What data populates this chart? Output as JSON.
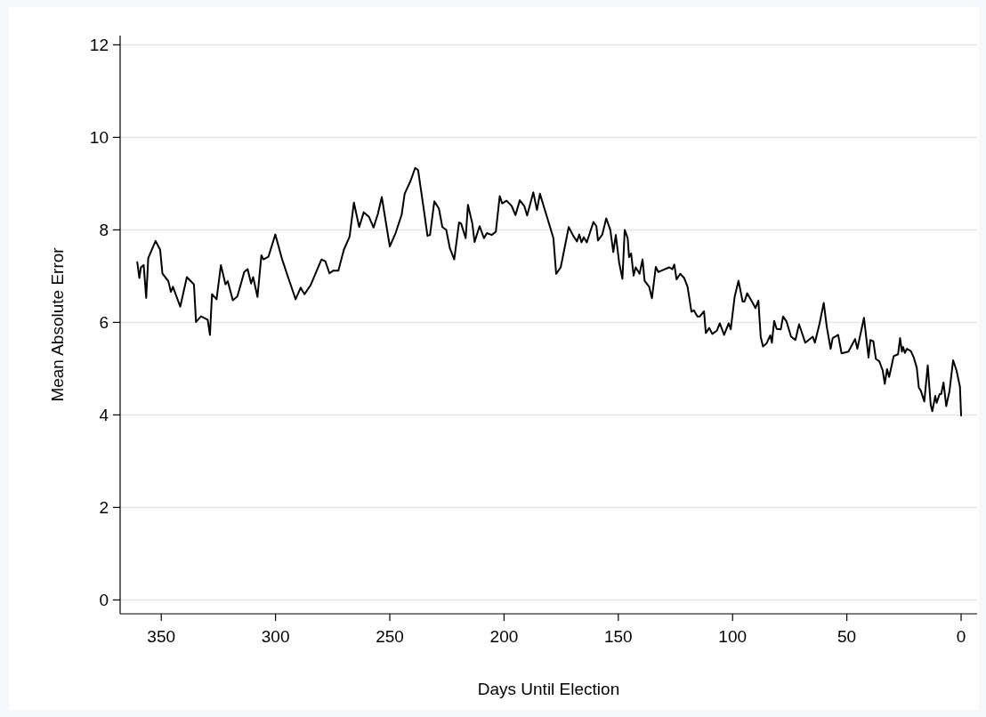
{
  "chart_data": {
    "type": "line",
    "xlabel": "Days Until Election",
    "ylabel": "Mean Absolute Error",
    "xlim": [
      368,
      -7
    ],
    "xticks": [
      350,
      300,
      250,
      200,
      150,
      100,
      50,
      0
    ],
    "ylim": [
      -0.3,
      12.2
    ],
    "yticks": [
      0,
      2,
      4,
      6,
      8,
      10,
      12
    ],
    "grid": "y",
    "marker": "none",
    "line_style": "solid",
    "series": [
      {
        "color": "#000000",
        "x": [
          360.5,
          359.6,
          358.9,
          357.7,
          356.6,
          355.7,
          352.5,
          350.5,
          349.5,
          346.9,
          345.8,
          344.9,
          341.7,
          338.8,
          335.7,
          334.8,
          332.6,
          329.7,
          328.7,
          327.8,
          325.8,
          323.9,
          321.9,
          320.9,
          318.7,
          316.7,
          313.7,
          312.2,
          310.7,
          309.8,
          307.9,
          306.2,
          305.3,
          303.1,
          300.1,
          297.1,
          294.2,
          291.2,
          289.0,
          287.3,
          284.7,
          279.9,
          278.2,
          276.4,
          274.7,
          272.5,
          270.1,
          267.6,
          265.7,
          263.4,
          261.4,
          259.1,
          257.1,
          255.2,
          253.5,
          250.0,
          247.4,
          244.8,
          243.5,
          240.9,
          238.9,
          237.6,
          235.0,
          233.5,
          232.4,
          230.5,
          228.5,
          227.0,
          225.3,
          223.7,
          221.8,
          219.7,
          218.8,
          216.8,
          215.8,
          213.9,
          212.9,
          210.7,
          208.8,
          207.5,
          205.4,
          203.6,
          201.9,
          200.8,
          198.9,
          196.7,
          195.0,
          193.1,
          191.1,
          189.9,
          187.2,
          185.6,
          184.3,
          181.7,
          178.4,
          177.2,
          175.2,
          171.7,
          169.7,
          168.1,
          167.1,
          166.1,
          165.1,
          163.8,
          160.9,
          159.6,
          158.9,
          157.0,
          155.3,
          153.5,
          152.2,
          151.1,
          149.6,
          148.2,
          147.2,
          145.9,
          145.3,
          144.4,
          143.3,
          142.4,
          140.7,
          139.4,
          138.5,
          136.5,
          135.3,
          133.6,
          132.5,
          131.0,
          127.7,
          126.4,
          125.5,
          124.5,
          122.9,
          121.2,
          119.7,
          118.0,
          116.9,
          115.4,
          114.3,
          112.5,
          111.7,
          110.2,
          108.9,
          106.9,
          105.6,
          103.7,
          101.7,
          100.8,
          99.1,
          97.4,
          95.6,
          94.8,
          93.6,
          91.3,
          90.0,
          88.7,
          87.7,
          86.7,
          85.2,
          83.5,
          82.8,
          81.8,
          80.7,
          78.9,
          77.9,
          76.4,
          74.4,
          72.5,
          70.9,
          68.2,
          64.9,
          64.0,
          62.0,
          60.1,
          58.8,
          57.1,
          56.2,
          53.8,
          52.3,
          49.3,
          46.4,
          45.4,
          42.5,
          40.5,
          39.7,
          38.4,
          37.3,
          35.8,
          34.3,
          33.4,
          32.4,
          31.5,
          29.5,
          27.6,
          26.7,
          25.9,
          25.4,
          24.6,
          23.7,
          22.0,
          20.7,
          19.4,
          18.5,
          17.6,
          16.1,
          14.6,
          13.3,
          12.6,
          11.3,
          10.7,
          9.4,
          8.7,
          7.7,
          6.5,
          5.1,
          3.5,
          2.0,
          0.5,
          0
        ],
        "values": [
          7.3,
          6.96,
          7.19,
          7.24,
          6.53,
          7.39,
          7.76,
          7.57,
          7.06,
          6.89,
          6.66,
          6.77,
          6.34,
          6.98,
          6.82,
          6.01,
          6.13,
          6.06,
          5.73,
          6.61,
          6.5,
          7.24,
          6.82,
          6.89,
          6.48,
          6.56,
          7.09,
          7.15,
          6.84,
          6.98,
          6.55,
          7.45,
          7.36,
          7.42,
          7.9,
          7.36,
          6.93,
          6.5,
          6.75,
          6.61,
          6.8,
          7.36,
          7.32,
          7.06,
          7.12,
          7.12,
          7.57,
          7.85,
          8.59,
          8.06,
          8.38,
          8.28,
          8.05,
          8.35,
          8.71,
          7.64,
          7.94,
          8.33,
          8.78,
          9.06,
          9.34,
          9.29,
          8.4,
          7.87,
          7.89,
          8.62,
          8.46,
          8.06,
          8.0,
          7.6,
          7.36,
          8.16,
          8.14,
          7.82,
          8.54,
          8.14,
          7.74,
          8.08,
          7.82,
          7.93,
          7.89,
          7.96,
          8.73,
          8.57,
          8.63,
          8.52,
          8.32,
          8.64,
          8.51,
          8.31,
          8.81,
          8.43,
          8.78,
          8.36,
          7.82,
          7.05,
          7.19,
          8.06,
          7.87,
          7.75,
          7.9,
          7.73,
          7.84,
          7.73,
          8.17,
          8.08,
          7.77,
          7.9,
          8.25,
          8.0,
          7.52,
          7.89,
          7.28,
          6.94,
          8.0,
          7.82,
          7.41,
          7.49,
          7.01,
          7.19,
          7.05,
          7.36,
          6.9,
          6.77,
          6.52,
          7.2,
          7.09,
          7.12,
          7.19,
          7.15,
          7.25,
          6.93,
          7.05,
          6.96,
          6.77,
          6.23,
          6.26,
          6.13,
          6.13,
          6.24,
          5.77,
          5.88,
          5.75,
          5.82,
          5.98,
          5.73,
          5.98,
          5.85,
          6.55,
          6.9,
          6.45,
          6.45,
          6.63,
          6.43,
          6.31,
          6.47,
          5.69,
          5.48,
          5.54,
          5.72,
          5.56,
          6.03,
          5.86,
          5.85,
          6.13,
          6.02,
          5.69,
          5.62,
          5.96,
          5.56,
          5.69,
          5.56,
          5.96,
          6.42,
          5.91,
          5.43,
          5.66,
          5.73,
          5.33,
          5.37,
          5.64,
          5.43,
          6.1,
          5.24,
          5.62,
          5.59,
          5.21,
          5.16,
          4.96,
          4.67,
          4.99,
          4.82,
          5.27,
          5.31,
          5.66,
          5.37,
          5.47,
          5.34,
          5.43,
          5.38,
          5.24,
          5.02,
          4.59,
          4.52,
          4.29,
          5.07,
          4.22,
          4.08,
          4.41,
          4.26,
          4.45,
          4.45,
          4.7,
          4.19,
          4.51,
          5.18,
          4.96,
          4.61,
          3.99
        ]
      }
    ]
  }
}
